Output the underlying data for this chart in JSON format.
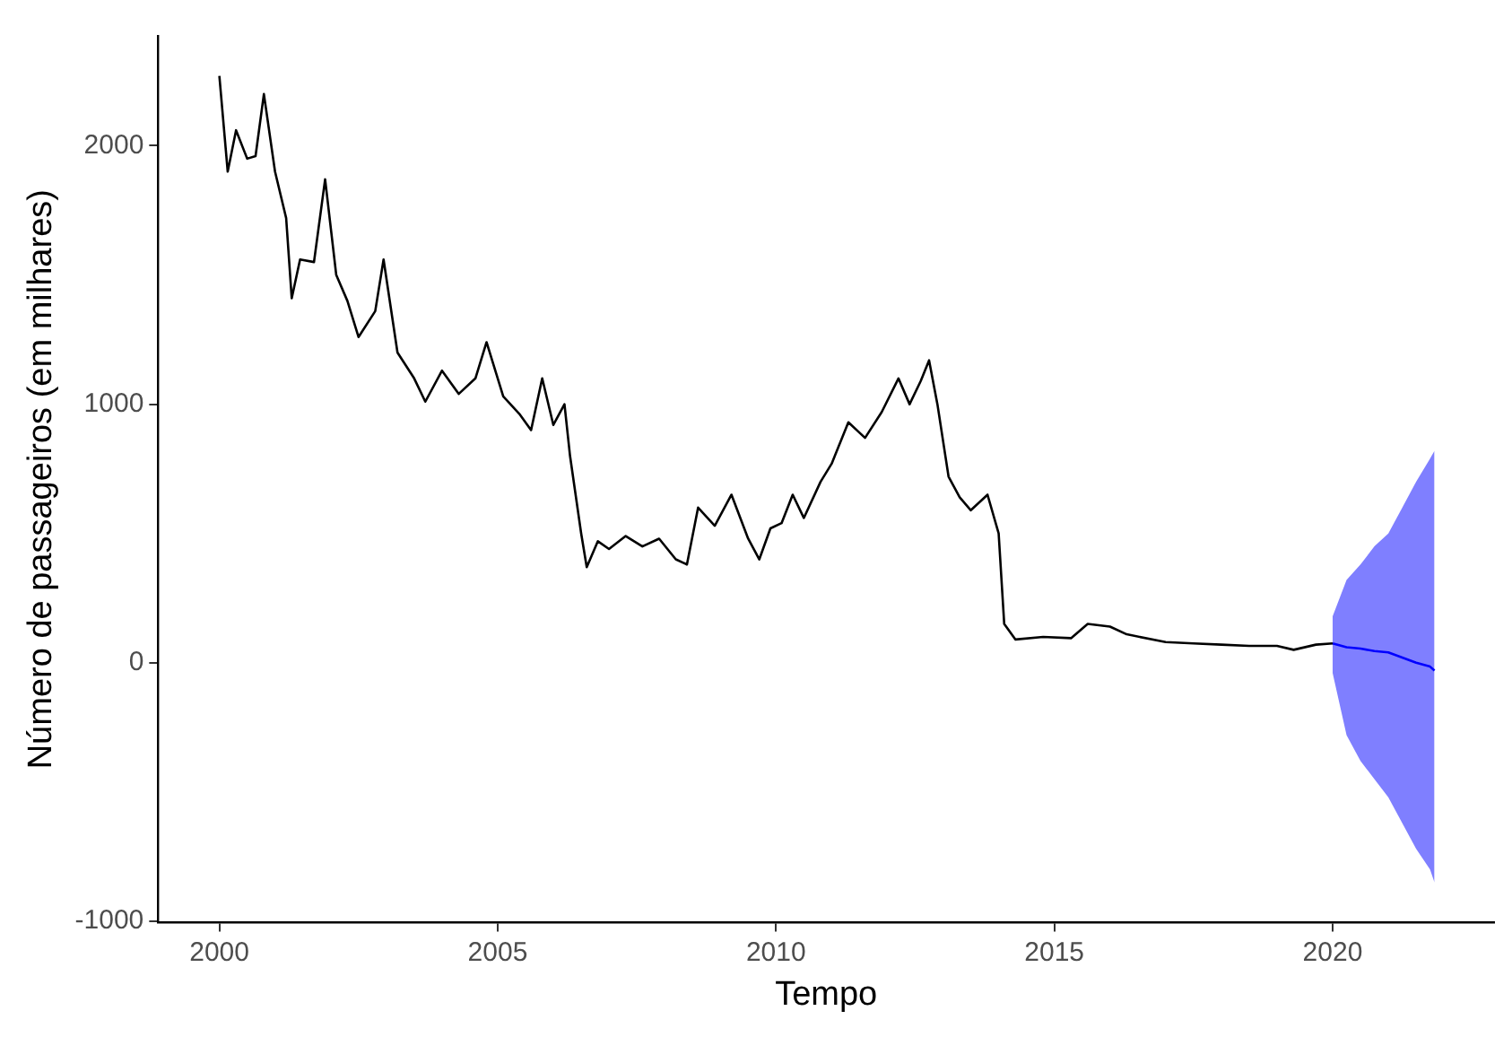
{
  "chart_data": {
    "type": "line",
    "xlabel": "Tempo",
    "ylabel": "Número de passageiros (em milhares)",
    "xlim": [
      1998.9,
      2022.9
    ],
    "xticks": [
      2000,
      2005,
      2010,
      2015,
      2020
    ],
    "ylim": [
      -1005,
      2425
    ],
    "yticks": [
      -1000,
      0,
      1000,
      2000
    ],
    "grid": false,
    "legend": false,
    "line_style": "solid",
    "marker": "none",
    "series": [
      {
        "color": "#000000",
        "x": [
          2000.0,
          2000.15,
          2000.3,
          2000.5,
          2000.65,
          2000.8,
          2001.0,
          2001.2,
          2001.3,
          2001.45,
          2001.7,
          2001.9,
          2002.1,
          2002.3,
          2002.5,
          2002.8,
          2002.95,
          2003.2,
          2003.5,
          2003.7,
          2004.0,
          2004.3,
          2004.6,
          2004.8,
          2005.1,
          2005.4,
          2005.6,
          2005.8,
          2006.0,
          2006.2,
          2006.3,
          2006.5,
          2006.6,
          2006.8,
          2007.0,
          2007.3,
          2007.6,
          2007.9,
          2008.2,
          2008.4,
          2008.6,
          2008.9,
          2009.2,
          2009.5,
          2009.7,
          2009.9,
          2010.1,
          2010.3,
          2010.5,
          2010.8,
          2011.0,
          2011.3,
          2011.6,
          2011.9,
          2012.2,
          2012.4,
          2012.6,
          2012.75,
          2012.9,
          2013.1,
          2013.3,
          2013.5,
          2013.8,
          2014.0,
          2014.1,
          2014.3,
          2014.8,
          2015.3,
          2015.6,
          2016.0,
          2016.3,
          2017.0,
          2017.5,
          2018.0,
          2018.5,
          2019.0,
          2019.3,
          2019.7,
          2020.0
        ],
        "values": [
          2270,
          1900,
          2060,
          1950,
          1960,
          2200,
          1900,
          1720,
          1410,
          1560,
          1550,
          1870,
          1500,
          1400,
          1260,
          1360,
          1560,
          1200,
          1100,
          1010,
          1130,
          1040,
          1100,
          1240,
          1030,
          960,
          900,
          1100,
          920,
          1000,
          800,
          500,
          370,
          470,
          440,
          490,
          450,
          480,
          400,
          380,
          600,
          530,
          650,
          480,
          400,
          520,
          540,
          650,
          560,
          700,
          770,
          930,
          870,
          970,
          1100,
          1000,
          1090,
          1170,
          1000,
          720,
          640,
          590,
          650,
          500,
          150,
          90,
          100,
          95,
          150,
          140,
          110,
          80,
          75,
          70,
          65,
          65,
          50,
          70,
          75
        ]
      },
      {
        "color": "#0000ff",
        "x": [
          2020.0,
          2020.25,
          2020.5,
          2020.75,
          2021.0,
          2021.25,
          2021.5,
          2021.75,
          2021.83
        ],
        "values": [
          75,
          60,
          55,
          45,
          40,
          20,
          0,
          -15,
          -30
        ],
        "lower": [
          -40,
          -280,
          -380,
          -450,
          -520,
          -620,
          -720,
          -800,
          -850
        ],
        "upper": [
          180,
          320,
          380,
          450,
          500,
          600,
          700,
          790,
          820
        ]
      }
    ]
  }
}
